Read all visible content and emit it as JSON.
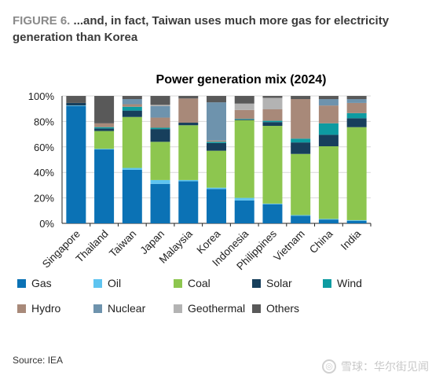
{
  "figure": {
    "number": "FIGURE 6.",
    "title": "...and, in fact, Taiwan uses much more gas for electricity generation than Korea"
  },
  "source": "Source: IEA",
  "watermark": "雪球：华尔街见闻",
  "colors": {
    "Gas": "#0b72b5",
    "Oil": "#5ec4f0",
    "Coal": "#8dc64f",
    "Solar": "#173f5c",
    "Wind": "#0d9ba1",
    "Hydro": "#a88979",
    "Nuclear": "#6e93ad",
    "Geothermal": "#b3b3b3",
    "Others": "#595959"
  },
  "chart_data": {
    "type": "bar",
    "stacked": true,
    "title": "Power generation mix (2024)",
    "xlabel": "",
    "ylabel": "",
    "ylim": [
      0,
      100
    ],
    "yticks": [
      "0%",
      "20%",
      "40%",
      "60%",
      "80%",
      "100%"
    ],
    "categories": [
      "Singapore",
      "Thailand",
      "Taiwan",
      "Japan",
      "Malaysia",
      "Korea",
      "Indonesia",
      "Philippines",
      "Vietnam",
      "China",
      "India"
    ],
    "legend_position": "bottom",
    "series": [
      {
        "name": "Gas",
        "values": [
          92,
          58,
          42,
          31,
          33,
          27,
          18,
          15,
          6,
          3,
          2
        ]
      },
      {
        "name": "Oil",
        "values": [
          0.5,
          0.5,
          1.5,
          3,
          1,
          1,
          2,
          0.5,
          0.5,
          0.5,
          0.5
        ]
      },
      {
        "name": "Coal",
        "values": [
          0,
          14,
          40,
          30,
          43,
          29,
          61,
          61,
          48,
          57,
          73
        ]
      },
      {
        "name": "Solar",
        "values": [
          2,
          2,
          5,
          10,
          2,
          6,
          0.5,
          3,
          9,
          9,
          7
        ]
      },
      {
        "name": "Wind",
        "values": [
          0,
          1,
          3,
          1,
          0,
          1,
          0.5,
          1,
          3,
          9,
          4
        ]
      },
      {
        "name": "Hydro",
        "values": [
          0,
          3,
          2,
          8,
          19,
          1,
          7,
          9,
          31,
          14,
          8
        ]
      },
      {
        "name": "Nuclear",
        "values": [
          0,
          0,
          4,
          9,
          0,
          30,
          0,
          0,
          0,
          5,
          3
        ]
      },
      {
        "name": "Geothermal",
        "values": [
          0,
          0,
          0,
          1,
          0,
          0,
          5,
          9,
          0,
          0,
          0
        ]
      },
      {
        "name": "Others",
        "values": [
          5.5,
          21.5,
          2.5,
          7,
          2,
          5,
          6,
          1.5,
          2.5,
          2.5,
          2.5
        ]
      }
    ]
  },
  "legend_rows": [
    [
      "Gas",
      "Oil",
      "Coal",
      "Solar",
      "Wind"
    ],
    [
      "Hydro",
      "Nuclear",
      "Geothermal",
      "Others"
    ]
  ]
}
